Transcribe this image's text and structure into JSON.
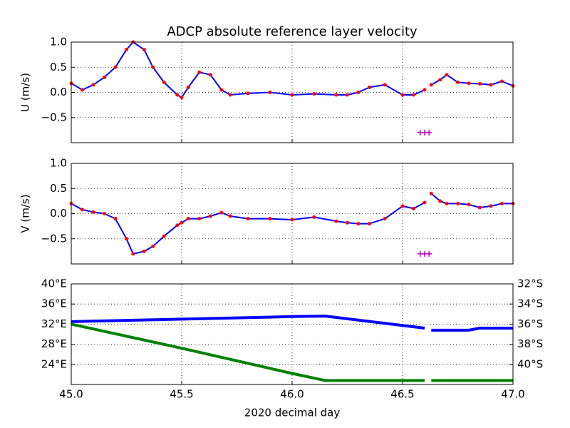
{
  "chart_data": [
    {
      "type": "line",
      "title": "ADCP absolute reference layer velocity",
      "ylabel": "U (m/s)",
      "x": [
        45.0,
        45.05,
        45.1,
        45.15,
        45.2,
        45.25,
        45.28,
        45.33,
        45.37,
        45.42,
        45.48,
        45.5,
        45.53,
        45.58,
        45.63,
        45.68,
        45.72,
        45.8,
        45.9,
        46.0,
        46.1,
        46.2,
        46.25,
        46.3,
        46.35,
        46.42,
        46.5,
        46.55,
        46.6,
        46.61,
        46.63,
        46.67,
        46.7,
        46.75,
        46.8,
        46.85,
        46.9,
        46.95,
        47.0
      ],
      "series": [
        {
          "color": "#0000ff",
          "marker_color": "#ff0000",
          "values": [
            0.18,
            0.05,
            0.15,
            0.3,
            0.5,
            0.85,
            1.0,
            0.85,
            0.5,
            0.2,
            -0.05,
            -0.1,
            0.1,
            0.4,
            0.35,
            0.05,
            -0.05,
            -0.02,
            0.0,
            -0.05,
            -0.03,
            -0.05,
            -0.05,
            0.0,
            0.1,
            0.15,
            -0.05,
            -0.05,
            0.05,
            null,
            0.15,
            0.25,
            0.35,
            0.2,
            0.18,
            0.17,
            0.15,
            0.22,
            0.13
          ]
        },
        {
          "color": "#bf00bf",
          "marker": "+",
          "x": [
            46.58,
            46.6,
            46.62
          ],
          "values": [
            -0.8,
            -0.8,
            -0.8
          ]
        }
      ],
      "xlim": [
        45,
        47
      ],
      "xticks": [
        45,
        45.5,
        46,
        46.5,
        47
      ],
      "xticklabels": false,
      "ylim": [
        -1,
        1
      ],
      "yticks": [
        {
          "value": -0.5,
          "label": "−0.5"
        },
        {
          "value": 0,
          "label": "0.0"
        },
        {
          "value": 0.5,
          "label": "0.5"
        },
        {
          "value": 1,
          "label": "1.0"
        }
      ],
      "grid": true
    },
    {
      "type": "line",
      "ylabel": "V (m/s)",
      "x": [
        45.0,
        45.05,
        45.1,
        45.15,
        45.2,
        45.25,
        45.28,
        45.33,
        45.37,
        45.42,
        45.48,
        45.5,
        45.53,
        45.58,
        45.63,
        45.68,
        45.72,
        45.8,
        45.9,
        46.0,
        46.1,
        46.2,
        46.25,
        46.3,
        46.35,
        46.42,
        46.5,
        46.55,
        46.6,
        46.61,
        46.63,
        46.67,
        46.7,
        46.75,
        46.8,
        46.85,
        46.9,
        46.95,
        47.0
      ],
      "series": [
        {
          "color": "#0000ff",
          "marker_color": "#ff0000",
          "values": [
            0.2,
            0.08,
            0.03,
            0.0,
            -0.1,
            -0.5,
            -0.8,
            -0.75,
            -0.65,
            -0.45,
            -0.23,
            -0.18,
            -0.1,
            -0.1,
            -0.05,
            0.02,
            -0.05,
            -0.1,
            -0.1,
            -0.12,
            -0.07,
            -0.15,
            -0.18,
            -0.2,
            -0.2,
            -0.1,
            0.15,
            0.1,
            0.22,
            null,
            0.4,
            0.25,
            0.2,
            0.2,
            0.18,
            0.12,
            0.15,
            0.2,
            0.2
          ]
        },
        {
          "color": "#bf00bf",
          "marker": "+",
          "x": [
            46.58,
            46.6,
            46.62
          ],
          "values": [
            -0.8,
            -0.8,
            -0.8
          ]
        }
      ],
      "xlim": [
        45,
        47
      ],
      "xticks": [
        45,
        45.5,
        46,
        46.5,
        47
      ],
      "xticklabels": false,
      "ylim": [
        -1,
        1
      ],
      "yticks": [
        {
          "value": -0.5,
          "label": "−0.5"
        },
        {
          "value": 0,
          "label": "0.0"
        },
        {
          "value": 0.5,
          "label": "0.5"
        },
        {
          "value": 1,
          "label": "1.0"
        }
      ],
      "grid": true
    },
    {
      "type": "line",
      "xlabel": "2020 decimal day",
      "x": [
        45.0,
        45.5,
        46.0,
        46.15,
        46.6,
        46.61,
        46.63,
        46.8,
        46.85,
        47.0
      ],
      "series": [
        {
          "color": "#0000ff",
          "values": [
            32.5,
            33.0,
            33.5,
            33.6,
            31.2,
            null,
            30.8,
            30.8,
            31.2,
            31.2
          ]
        },
        {
          "color": "#008000",
          "axis": "y2",
          "values": [
            -36,
            -38.4,
            -40.9,
            -41.6,
            -41.6,
            null,
            -41.6,
            -41.6,
            -41.6,
            -41.6
          ]
        }
      ],
      "xlim": [
        45,
        47
      ],
      "xticks": [
        {
          "value": 45,
          "label": "45.0"
        },
        {
          "value": 45.5,
          "label": "45.5"
        },
        {
          "value": 46,
          "label": "46.0"
        },
        {
          "value": 46.5,
          "label": "46.5"
        },
        {
          "value": 47,
          "label": "47.0"
        }
      ],
      "ylim": [
        20,
        40
      ],
      "yticks": [
        {
          "value": 24,
          "label": "24°E"
        },
        {
          "value": 28,
          "label": "28°E"
        },
        {
          "value": 32,
          "label": "32°E"
        },
        {
          "value": 36,
          "label": "36°E"
        },
        {
          "value": 40,
          "label": "40°E"
        }
      ],
      "ytick_color": "#0000ff",
      "y2lim": [
        -42,
        -32
      ],
      "y2ticks": [
        {
          "value": -40,
          "label": "40°S"
        },
        {
          "value": -38,
          "label": "38°S"
        },
        {
          "value": -36,
          "label": "36°S"
        },
        {
          "value": -34,
          "label": "34°S"
        },
        {
          "value": -32,
          "label": "32°S"
        }
      ],
      "y2tick_color": "#008000",
      "grid": true
    }
  ]
}
